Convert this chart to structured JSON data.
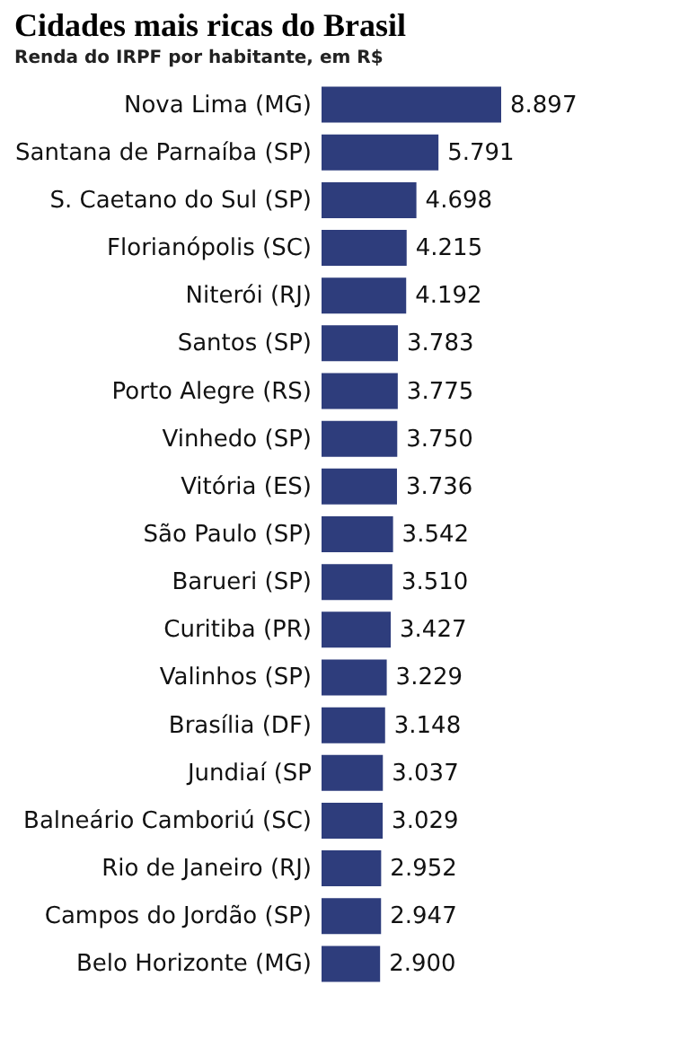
{
  "chart_data": {
    "type": "bar",
    "orientation": "horizontal",
    "title": "Cidades mais ricas do Brasil",
    "subtitle": "Renda do IRPF por habitante, em R$",
    "categories": [
      "Nova Lima (MG)",
      "Santana de Parnaíba (SP)",
      "S. Caetano do Sul (SP)",
      "Florianópolis (SC)",
      "Niterói (RJ)",
      "Santos (SP)",
      "Porto Alegre (RS)",
      "Vinhedo (SP)",
      "Vitória (ES)",
      "São Paulo (SP)",
      "Barueri (SP)",
      "Curitiba (PR)",
      "Valinhos (SP)",
      "Brasília (DF)",
      "Jundiaí (SP",
      "Balneário Camboriú (SC)",
      "Rio de Janeiro (RJ)",
      "Campos do Jordão (SP)",
      "Belo Horizonte (MG)"
    ],
    "values": [
      8897,
      5791,
      4698,
      4215,
      4192,
      3783,
      3775,
      3750,
      3736,
      3542,
      3510,
      3427,
      3229,
      3148,
      3037,
      3029,
      2952,
      2947,
      2900
    ],
    "value_labels": [
      "8.897",
      "5.791",
      "4.698",
      "4.215",
      "4.192",
      "3.783",
      "3.775",
      "3.750",
      "3.736",
      "3.542",
      "3.510",
      "3.427",
      "3.229",
      "3.148",
      "3.037",
      "3.029",
      "2.952",
      "2.947",
      "2.900"
    ],
    "color": "#2e3d7c"
  }
}
